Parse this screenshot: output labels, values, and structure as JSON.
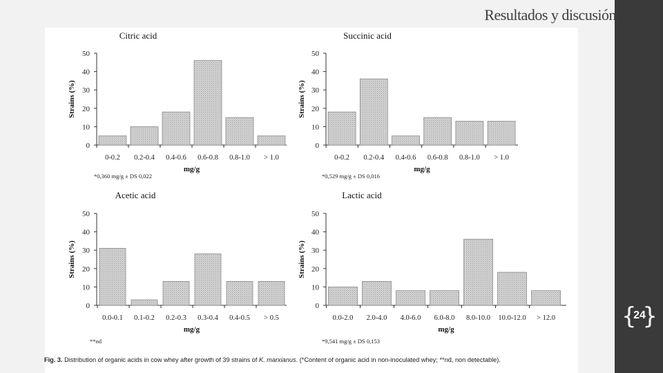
{
  "slide": {
    "title": "Resultados y discusión",
    "page_number": "24"
  },
  "caption": {
    "fig_label": "Fig. 3.",
    "text_before_species": " Distribution of organic acids in cow whey after growth of 39 strains of ",
    "species": "K. marxianus",
    "text_after_species": ". (*Content of organic acid in non-inoculated whey; **nd, non detectable)."
  },
  "colors": {
    "bar_fill": "#d0d0d0",
    "bar_stroke": "#8a8a8a",
    "sidebar": "#3a3a3a",
    "background": "#f2f2f2"
  },
  "chart_data": [
    {
      "type": "bar",
      "title": "Citric acid",
      "xlabel": "mg/g",
      "ylabel": "Strains (%)",
      "ylim": [
        0,
        50
      ],
      "yticks": [
        0,
        10,
        20,
        30,
        40,
        50
      ],
      "categories": [
        "0-0.2",
        "0.2-0.4",
        "0.4-0.6",
        "0.6-0.8",
        "0.8-1.0",
        "> 1.0"
      ],
      "values": [
        5,
        10,
        18,
        46,
        15,
        5
      ],
      "note": "*0,360 mg/g ± DS 0,022"
    },
    {
      "type": "bar",
      "title": "Succinic acid",
      "xlabel": "mg/g",
      "ylabel": "Strains (%)",
      "ylim": [
        0,
        50
      ],
      "yticks": [
        0,
        10,
        20,
        30,
        40,
        50
      ],
      "categories": [
        "0-0.2",
        "0.2-0.4",
        "0.4-0.6",
        "0.6-0.8",
        "0.8-1.0",
        "> 1.0"
      ],
      "values": [
        18,
        36,
        5,
        15,
        13,
        13
      ],
      "note": "*0,529 mg/g ± DS 0,016"
    },
    {
      "type": "bar",
      "title": "Acetic acid",
      "xlabel": "mg/g",
      "ylabel": "Strains (%)",
      "ylim": [
        0,
        50
      ],
      "yticks": [
        0,
        10,
        20,
        30,
        40,
        50
      ],
      "categories": [
        "0.0-0.1",
        "0.1-0.2",
        "0.2-0.3",
        "0.3-0.4",
        "0.4-0.5",
        "> 0.5"
      ],
      "values": [
        31,
        3,
        13,
        28,
        13,
        13
      ],
      "note": "**nd"
    },
    {
      "type": "bar",
      "title": "Lactic acid",
      "xlabel": "mg/g",
      "ylabel": "Strains (%)",
      "ylim": [
        0,
        50
      ],
      "yticks": [
        0,
        10,
        20,
        30,
        40,
        50
      ],
      "categories": [
        "0.0-2.0",
        "2.0-4.0",
        "4.0-6.0",
        "6.0-8.0",
        "8.0-10.0",
        "10.0-12.0",
        "> 12.0"
      ],
      "values": [
        10,
        13,
        8,
        8,
        36,
        18,
        8
      ],
      "note": "*9,541 mg/g ± DS 0,153"
    }
  ]
}
